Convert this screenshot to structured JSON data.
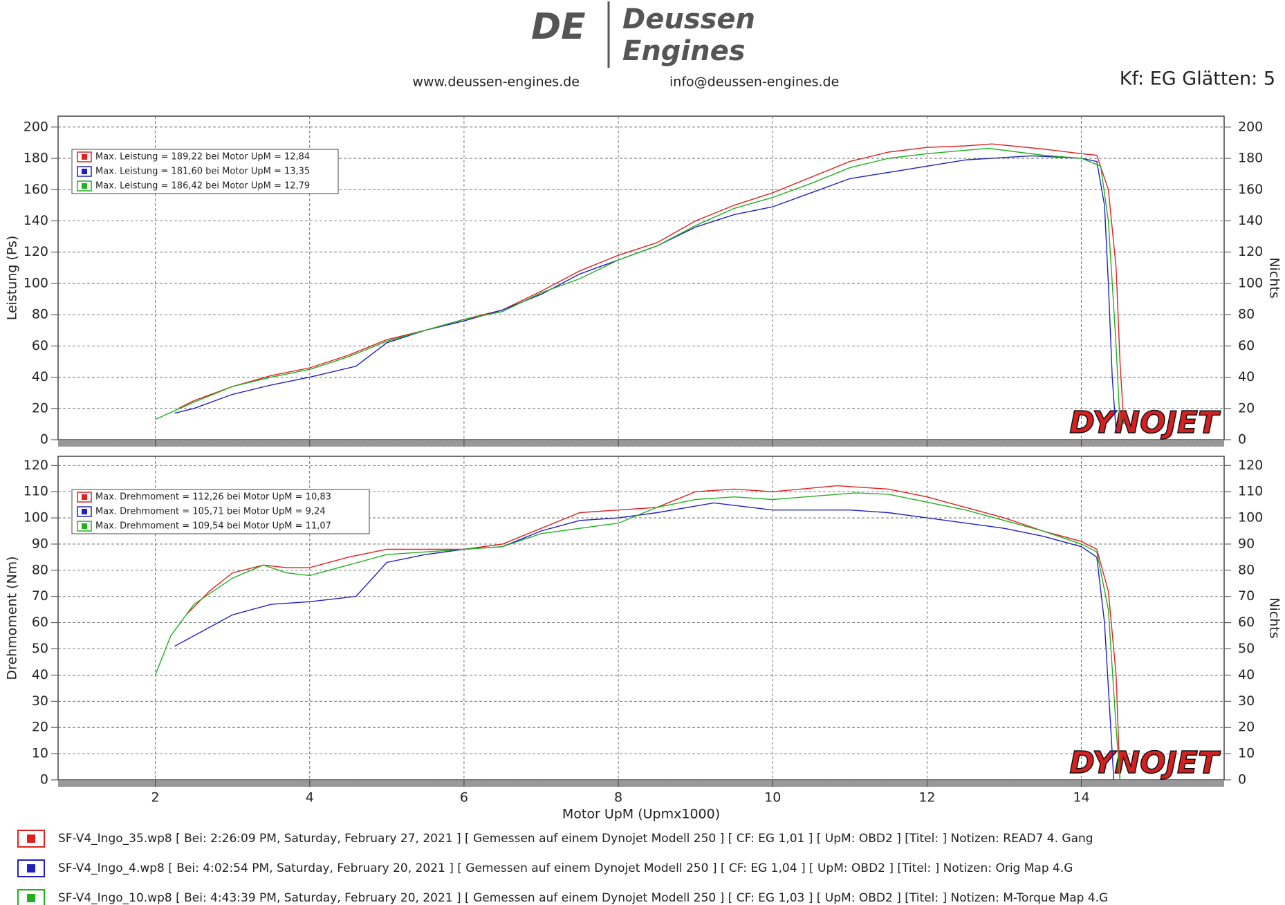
{
  "header": {
    "logo_mark": "DE",
    "logo_line1": "Deussen",
    "logo_line2": "Engines",
    "website": "www.deussen-engines.de",
    "email": "info@deussen-engines.de",
    "smoothing": "Kf: EG Glätten: 5"
  },
  "watermark": "DYNOJET",
  "chart_data": [
    {
      "type": "line",
      "ylabel": "Leistung (Ps)",
      "y2label": "Nichts",
      "xlim": [
        0.74,
        15.85
      ],
      "xticks": [
        2,
        4,
        6,
        8,
        10,
        12,
        14
      ],
      "ylim": [
        0,
        207
      ],
      "yticks": [
        0,
        20,
        40,
        60,
        80,
        100,
        120,
        140,
        160,
        180,
        200
      ],
      "y2lim": [
        0,
        207
      ],
      "y2ticks": [
        0,
        20,
        40,
        60,
        80,
        100,
        120,
        140,
        160,
        180,
        200
      ],
      "grid": true,
      "series": [
        {
          "name": "Max. Leistung = 189,22 bei Motor UpM = 12,84",
          "color": "#e02020",
          "x": [
            2.3,
            2.5,
            3,
            3.5,
            4,
            4.5,
            5,
            5.5,
            6,
            6.5,
            7,
            7.5,
            8,
            8.5,
            9,
            9.5,
            10,
            10.5,
            11,
            11.5,
            12,
            12.5,
            12.84,
            13.5,
            14,
            14.2,
            14.35,
            14.45,
            14.5,
            14.55
          ],
          "values": [
            20,
            25,
            34,
            41,
            46,
            54,
            64,
            70,
            77,
            83,
            95,
            108,
            118,
            126,
            140,
            150,
            158,
            168,
            178,
            184,
            187,
            188,
            189.22,
            186,
            183,
            182,
            160,
            110,
            50,
            10
          ]
        },
        {
          "name": "Max. Leistung = 181,60 bei Motor UpM = 13,35",
          "color": "#2020c0",
          "x": [
            2.25,
            2.5,
            3,
            3.5,
            4,
            4.6,
            5,
            5.5,
            6,
            6.5,
            7,
            7.5,
            8,
            8.5,
            9,
            9.5,
            10,
            10.5,
            11,
            11.5,
            12,
            12.5,
            13.35,
            14,
            14.2,
            14.3,
            14.35,
            14.4,
            14.45
          ],
          "values": [
            17,
            20,
            29,
            35,
            40,
            47,
            62,
            70,
            76,
            83,
            93,
            106,
            115,
            124,
            136,
            144,
            149,
            158,
            167,
            171,
            175,
            179,
            181.6,
            180,
            178,
            150,
            100,
            40,
            5
          ]
        },
        {
          "name": "Max. Leistung = 186,42 bei Motor UpM = 12,79",
          "color": "#20b020",
          "x": [
            2,
            2.5,
            3,
            3.5,
            4,
            4.5,
            5,
            5.5,
            6,
            6.5,
            7,
            7.5,
            8,
            8.5,
            9,
            9.5,
            10,
            10.5,
            11,
            11.5,
            12,
            12.79,
            13.5,
            14,
            14.25,
            14.35,
            14.45,
            14.5
          ],
          "values": [
            13,
            24,
            34,
            40,
            45,
            53,
            63,
            70,
            77,
            82,
            94,
            103,
            115,
            124,
            137,
            148,
            155,
            164,
            174,
            180,
            183,
            186.42,
            182,
            180,
            175,
            140,
            60,
            10
          ]
        }
      ]
    },
    {
      "type": "line",
      "ylabel": "Drehmoment (Nm)",
      "y2label": "Nichts",
      "xlabel": "Motor UpM (Upmx1000)",
      "xlim": [
        0.74,
        15.85
      ],
      "xticks": [
        2,
        4,
        6,
        8,
        10,
        12,
        14
      ],
      "ylim": [
        0,
        123.5
      ],
      "yticks": [
        0,
        10,
        20,
        30,
        40,
        50,
        60,
        70,
        80,
        90,
        100,
        110,
        120
      ],
      "y2lim": [
        0,
        123.5
      ],
      "y2ticks": [
        0,
        10,
        20,
        30,
        40,
        50,
        60,
        70,
        80,
        90,
        100,
        110,
        120
      ],
      "grid": true,
      "series": [
        {
          "name": "Max. Drehmoment = 112,26 bei Motor UpM = 10,83",
          "color": "#e02020",
          "x": [
            2.4,
            2.7,
            3,
            3.4,
            3.7,
            4,
            4.5,
            5,
            5.5,
            6,
            6.5,
            7,
            7.5,
            8,
            8.5,
            9,
            9.5,
            10,
            10.83,
            11.5,
            12,
            12.5,
            13,
            13.5,
            14,
            14.2,
            14.35,
            14.45,
            14.5
          ],
          "values": [
            63,
            72,
            79,
            82,
            81,
            81,
            85,
            88,
            88,
            88,
            90,
            96,
            102,
            103,
            104,
            110,
            111,
            110,
            112.26,
            111,
            108,
            104,
            100,
            95,
            91,
            88,
            72,
            40,
            0
          ]
        },
        {
          "name": "Max. Drehmoment = 105,71 bei Motor UpM = 9,24",
          "color": "#2020c0",
          "x": [
            2.25,
            2.5,
            3,
            3.5,
            4,
            4.6,
            5,
            5.5,
            6,
            6.5,
            7,
            7.5,
            8,
            8.5,
            9.24,
            10,
            10.5,
            11,
            11.5,
            12,
            12.5,
            13,
            13.5,
            14,
            14.2,
            14.3,
            14.38,
            14.42
          ],
          "values": [
            51,
            55,
            63,
            67,
            68,
            70,
            83,
            86,
            88,
            89,
            95,
            99,
            100,
            102,
            105.71,
            103,
            103,
            103,
            102,
            100,
            98,
            96,
            93,
            89,
            85,
            60,
            20,
            0
          ]
        },
        {
          "name": "Max. Drehmoment = 109,54 bei Motor UpM = 11,07",
          "color": "#20b020",
          "x": [
            2,
            2.2,
            2.5,
            3,
            3.4,
            3.7,
            4,
            4.5,
            5,
            5.5,
            6,
            6.5,
            7,
            7.5,
            8,
            8.5,
            9,
            9.5,
            10,
            11.07,
            11.5,
            12,
            12.5,
            13,
            13.5,
            14,
            14.2,
            14.35,
            14.45,
            14.5
          ],
          "values": [
            40,
            55,
            67,
            77,
            82,
            79,
            78,
            82,
            86,
            87,
            88,
            89,
            94,
            96,
            98,
            104,
            107,
            108,
            107,
            109.54,
            109,
            106,
            103,
            99,
            95,
            90,
            87,
            65,
            20,
            0
          ]
        }
      ]
    }
  ],
  "runs": [
    {
      "color": "#e02020",
      "text": "SF-V4_Ingo_35.wp8 [ Bei: 2:26:09 PM, Saturday, February 27, 2021 ] [ Gemessen auf einem Dynojet Modell 250 ] [ CF: EG 1,01 ] [ UpM: OBD2 ] [Titel: ]  Notizen: READ7 4. Gang"
    },
    {
      "color": "#2020c0",
      "text": "SF-V4_Ingo_4.wp8 [ Bei: 4:02:54 PM, Saturday, February 20, 2021 ] [ Gemessen auf einem Dynojet Modell 250 ] [ CF: EG 1,04 ] [ UpM: OBD2 ] [Titel: ]  Notizen: Orig Map 4.G"
    },
    {
      "color": "#20b020",
      "text": "SF-V4_Ingo_10.wp8 [ Bei: 4:43:39 PM, Saturday, February 20, 2021 ] [ Gemessen auf einem Dynojet Modell 250 ] [ CF: EG 1,03 ] [ UpM: OBD2 ] [Titel: ]  Notizen: M-Torque Map 4.G"
    }
  ]
}
